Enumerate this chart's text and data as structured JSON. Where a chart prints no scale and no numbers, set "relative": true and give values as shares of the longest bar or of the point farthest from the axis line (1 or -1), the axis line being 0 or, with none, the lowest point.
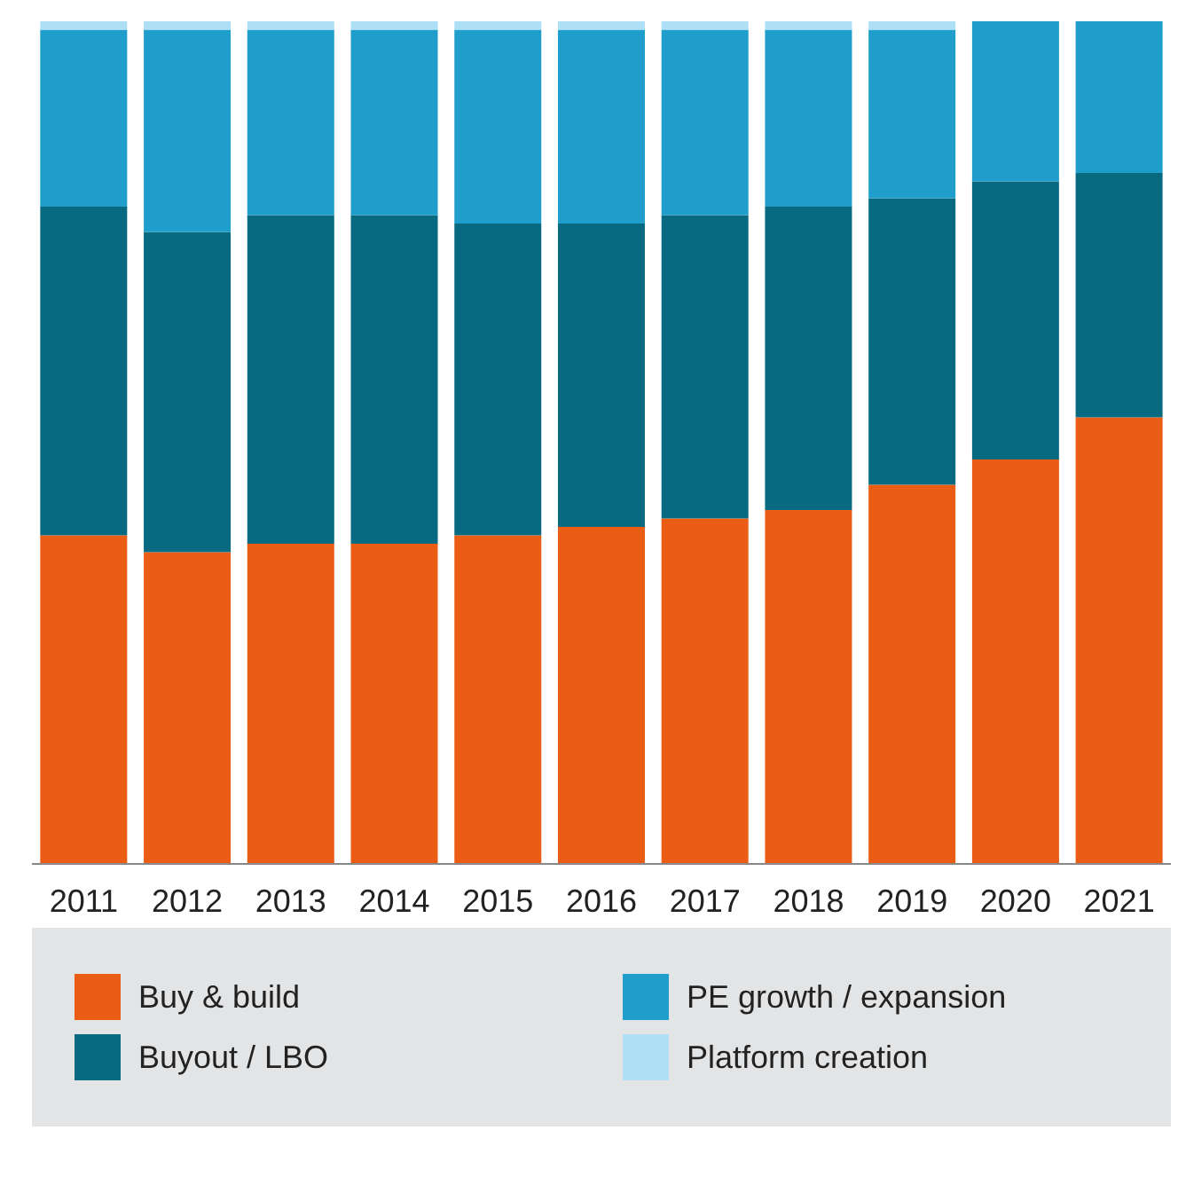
{
  "chart_data": {
    "type": "bar",
    "stacked": true,
    "relative": true,
    "legend": "bottom",
    "categories": [
      "2011",
      "2012",
      "2013",
      "2014",
      "2015",
      "2016",
      "2017",
      "2018",
      "2019",
      "2020",
      "2021"
    ],
    "series": [
      {
        "name": "Buy & build",
        "color": "#eb5c14",
        "values": [
          0.39,
          0.37,
          0.38,
          0.38,
          0.39,
          0.4,
          0.41,
          0.42,
          0.45,
          0.48,
          0.53
        ]
      },
      {
        "name": "Buyout / LBO",
        "color": "#086a80",
        "values": [
          0.39,
          0.38,
          0.39,
          0.39,
          0.37,
          0.36,
          0.36,
          0.36,
          0.34,
          0.33,
          0.29
        ]
      },
      {
        "name": "PE growth / expansion",
        "color": "#1f9dcb",
        "values": [
          0.21,
          0.24,
          0.22,
          0.22,
          0.23,
          0.23,
          0.22,
          0.21,
          0.2,
          0.19,
          0.18
        ]
      },
      {
        "name": "Platform creation",
        "color": "#aee0f5",
        "values": [
          0.01,
          0.01,
          0.01,
          0.01,
          0.01,
          0.01,
          0.01,
          0.01,
          0.01,
          0,
          0
        ]
      }
    ]
  }
}
